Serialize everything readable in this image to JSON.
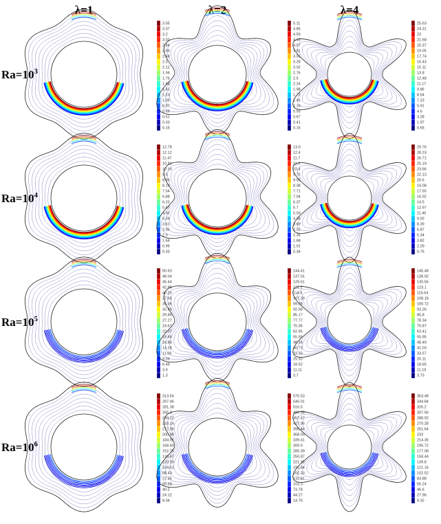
{
  "column_headers": [
    "λ=1",
    "λ=2",
    "λ=4"
  ],
  "rows": [
    {
      "label": {
        "base": "Ra=10",
        "exponent": "3"
      },
      "panels": [
        {
          "colorbar": [
            "3.55",
            "3.37",
            "3.2",
            "3.02",
            "2.84",
            "2.66",
            "2.48",
            "2.3",
            "2.12",
            "1.94",
            "1.76",
            "1.58",
            "1.41",
            "1.23",
            "1.05",
            "0.87",
            "0.69",
            "0.51",
            "0.33",
            "0.15"
          ]
        },
        {
          "colorbar": [
            "5.11",
            "4.85",
            "4.59",
            "4.33",
            "4.07",
            "3.81",
            "3.55",
            "3.28",
            "3.02",
            "2.76",
            "2.5",
            "2.24",
            "1.98",
            "1.72",
            "1.45",
            "1.19",
            "0.93",
            "0.67",
            "0.41",
            "0.15"
          ]
        },
        {
          "colorbar": [
            "25.63",
            "24.31",
            "23",
            "21.68",
            "20.37",
            "19.05",
            "17.74",
            "16.43",
            "15.11",
            "13.8",
            "12.48",
            "11.17",
            "9.86",
            "8.54",
            "7.23",
            "5.91",
            "4.6",
            "3.28",
            "1.97",
            "0.65"
          ]
        }
      ]
    },
    {
      "label": {
        "base": "Ra=10",
        "exponent": "4"
      },
      "panels": [
        {
          "colorbar": [
            "12.78",
            "12.12",
            "11.47",
            "10.81",
            "10.16",
            "9.5",
            "8.85",
            "8.19",
            "7.54",
            "6.88",
            "6.23",
            "5.57",
            "4.92",
            "4.26",
            "3.61",
            "2.95",
            "2.3",
            "1.64",
            "0.99",
            "0.33"
          ]
        },
        {
          "colorbar": [
            "13.0",
            "12.4",
            "11.7",
            "11.0",
            "10.4",
            "9.72",
            "9.05",
            "8.38",
            "7.71",
            "7.04",
            "6.37",
            "5.7",
            "5.03",
            "4.36",
            "3.69",
            "3.02",
            "2.35",
            "1.68",
            "1.01",
            "0.34"
          ]
        },
        {
          "colorbar": [
            "29.76",
            "28.23",
            "26.71",
            "25.19",
            "23.66",
            "22.13",
            "20.6",
            "19.08",
            "17.55",
            "16.02",
            "14.5",
            "12.97",
            "11.45",
            "9.92",
            "8.39",
            "6.87",
            "5.34",
            "3.82",
            "2.29",
            "0.76"
          ]
        }
      ]
    },
    {
      "label": {
        "base": "Ra=10",
        "exponent": "5"
      },
      "panels": [
        {
          "colorbar": [
            "50.63",
            "48.04",
            "45.44",
            "42.85",
            "40.25",
            "37.65",
            "35.06",
            "32.46",
            "29.86",
            "27.27",
            "24.67",
            "22.07",
            "19.48",
            "16.88",
            "14.28",
            "11.69",
            "9.09",
            "6.49",
            "3.9",
            "1.3"
          ]
        },
        {
          "colorbar": [
            "144.41",
            "137.01",
            "129.61",
            "122.2",
            "114.8",
            "107.39",
            "99.99",
            "92.58",
            "85.17",
            "77.77",
            "70.36",
            "62.95",
            "55.55",
            "48.14",
            "40.73",
            "33.33",
            "25.92",
            "18.52",
            "11.11",
            "3.7"
          ]
        },
        {
          "colorbar": [
            "145.48",
            "138.02",
            "130.56",
            "123.1",
            "115.64",
            "108.18",
            "100.72",
            "93.26",
            "85.8",
            "78.34",
            "70.87",
            "63.41",
            "55.95",
            "48.49",
            "41.03",
            "33.57",
            "26.11",
            "18.65",
            "11.19",
            "3.73"
          ]
        }
      ]
    },
    {
      "label": {
        "base": "Ra=10",
        "exponent": "6"
      },
      "panels": [
        {
          "colorbar": [
            "313.54",
            "297.46",
            "281.38",
            "265.3",
            "249.22",
            "233.14",
            "217.06",
            "200.98",
            "184.91",
            "168.83",
            "152.75",
            "136.67",
            "120.59",
            "104.51",
            "88.43",
            "72.35",
            "56.28",
            "40.2",
            "24.12",
            "8.04"
          ]
        },
        {
          "colorbar": [
            "575.53",
            "546.01",
            "516.5",
            "486.99",
            "457.47",
            "427.96",
            "398.44",
            "368.93",
            "339.41",
            "309.9",
            "280.39",
            "250.87",
            "221.36",
            "191.84",
            "162.33",
            "132.81",
            "103.3",
            "73.78",
            "44.27",
            "14.76"
          ]
        },
        {
          "colorbar": [
            "363.48",
            "344.84",
            "326.2",
            "307.56",
            "288.92",
            "270.28",
            "251.64",
            "233",
            "214.36",
            "195.72",
            "177.08",
            "158.44",
            "139.8",
            "121.16",
            "102.52",
            "83.88",
            "65.24",
            "46.6",
            "27.96",
            "9.32"
          ]
        }
      ]
    }
  ]
}
